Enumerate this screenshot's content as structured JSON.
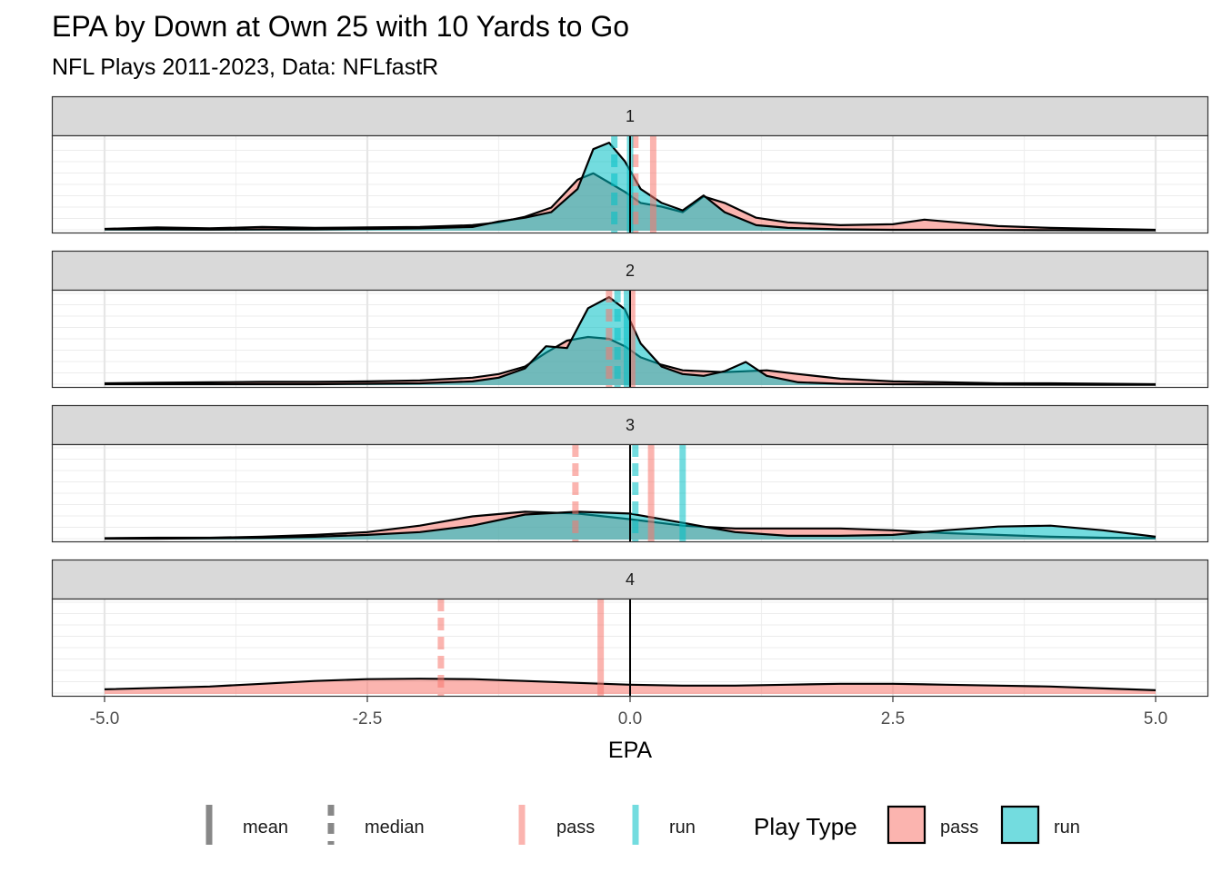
{
  "chart_data": {
    "type": "area",
    "title": "EPA by Down at Own 25 with 10 Yards to Go",
    "subtitle": "NFL Plays 2011-2023, Data: NFLfastR",
    "xlabel": "EPA",
    "ylabel": "",
    "xlim": [
      -5,
      5
    ],
    "xticks": [
      -5.0,
      -2.5,
      0.0,
      2.5,
      5.0
    ],
    "xtick_labels": [
      "-5.0",
      "-2.5",
      "0.0",
      "2.5",
      "5.0"
    ],
    "grid": true,
    "colors": {
      "pass": "#F8766D",
      "run": "#00BFC4"
    },
    "zero_line": 0.0,
    "facets": [
      {
        "label": "1",
        "ymax": 1.0,
        "x": [
          -5.0,
          -4.5,
          -4.0,
          -3.5,
          -3.0,
          -2.5,
          -2.0,
          -1.5,
          -1.25,
          -1.0,
          -0.75,
          -0.5,
          -0.35,
          -0.2,
          -0.05,
          0.1,
          0.3,
          0.5,
          0.7,
          0.9,
          1.2,
          1.5,
          2.0,
          2.5,
          2.8,
          3.1,
          3.5,
          4.0,
          4.5,
          5.0
        ],
        "series": [
          {
            "name": "pass",
            "values": [
              0.02,
              0.035,
              0.025,
              0.04,
              0.03,
              0.035,
              0.04,
              0.06,
              0.09,
              0.15,
              0.25,
              0.55,
              0.62,
              0.52,
              0.42,
              0.3,
              0.26,
              0.2,
              0.37,
              0.3,
              0.14,
              0.09,
              0.06,
              0.07,
              0.12,
              0.09,
              0.05,
              0.03,
              0.02,
              0.01
            ]
          },
          {
            "name": "run",
            "values": [
              0.015,
              0.015,
              0.012,
              0.015,
              0.015,
              0.02,
              0.025,
              0.04,
              0.1,
              0.14,
              0.2,
              0.45,
              0.88,
              0.95,
              0.75,
              0.45,
              0.3,
              0.22,
              0.38,
              0.2,
              0.06,
              0.03,
              0.015,
              0.01,
              0.01,
              0.01,
              0.008,
              0.006,
              0.005,
              0.004
            ]
          }
        ],
        "lines": [
          {
            "series": "pass",
            "stat": "mean",
            "x": 0.22
          },
          {
            "series": "pass",
            "stat": "median",
            "x": 0.05
          },
          {
            "series": "run",
            "stat": "mean",
            "x": 0.0
          },
          {
            "series": "run",
            "stat": "median",
            "x": -0.15
          }
        ]
      },
      {
        "label": "2",
        "ymax": 1.0,
        "x": [
          -5.0,
          -4.5,
          -4.0,
          -3.5,
          -3.0,
          -2.5,
          -2.0,
          -1.5,
          -1.25,
          -1.0,
          -0.8,
          -0.6,
          -0.4,
          -0.2,
          -0.05,
          0.1,
          0.3,
          0.5,
          0.7,
          0.9,
          1.1,
          1.3,
          1.6,
          2.0,
          2.5,
          3.0,
          3.5,
          4.0,
          4.5,
          5.0
        ],
        "series": [
          {
            "name": "pass",
            "values": [
              0.02,
              0.025,
              0.03,
              0.035,
              0.035,
              0.04,
              0.05,
              0.08,
              0.12,
              0.2,
              0.35,
              0.48,
              0.52,
              0.5,
              0.42,
              0.3,
              0.22,
              0.16,
              0.15,
              0.14,
              0.15,
              0.16,
              0.12,
              0.07,
              0.04,
              0.03,
              0.02,
              0.02,
              0.015,
              0.01
            ]
          },
          {
            "name": "run",
            "values": [
              0.01,
              0.01,
              0.01,
              0.01,
              0.01,
              0.015,
              0.02,
              0.04,
              0.08,
              0.18,
              0.42,
              0.4,
              0.83,
              0.95,
              0.82,
              0.45,
              0.2,
              0.12,
              0.1,
              0.15,
              0.25,
              0.1,
              0.03,
              0.015,
              0.01,
              0.008,
              0.006,
              0.005,
              0.004,
              0.003
            ]
          }
        ],
        "lines": [
          {
            "series": "pass",
            "stat": "mean",
            "x": 0.02
          },
          {
            "series": "pass",
            "stat": "median",
            "x": -0.2
          },
          {
            "series": "run",
            "stat": "mean",
            "x": -0.03
          },
          {
            "series": "run",
            "stat": "median",
            "x": -0.12
          }
        ]
      },
      {
        "label": "3",
        "ymax": 1.0,
        "x": [
          -5.0,
          -4.5,
          -4.0,
          -3.5,
          -3.0,
          -2.5,
          -2.0,
          -1.5,
          -1.0,
          -0.5,
          0.0,
          0.5,
          1.0,
          1.5,
          2.0,
          2.5,
          3.0,
          3.5,
          4.0,
          4.5,
          5.0
        ],
        "series": [
          {
            "name": "pass",
            "values": [
              0.015,
              0.02,
              0.02,
              0.03,
              0.05,
              0.08,
              0.15,
              0.25,
              0.3,
              0.28,
              0.22,
              0.15,
              0.12,
              0.12,
              0.12,
              0.1,
              0.07,
              0.05,
              0.03,
              0.02,
              0.015
            ]
          },
          {
            "name": "run",
            "values": [
              0.01,
              0.01,
              0.015,
              0.02,
              0.03,
              0.05,
              0.08,
              0.15,
              0.27,
              0.3,
              0.28,
              0.18,
              0.08,
              0.04,
              0.04,
              0.05,
              0.1,
              0.14,
              0.15,
              0.1,
              0.03
            ]
          }
        ],
        "lines": [
          {
            "series": "pass",
            "stat": "mean",
            "x": 0.2
          },
          {
            "series": "pass",
            "stat": "median",
            "x": -0.52
          },
          {
            "series": "run",
            "stat": "mean",
            "x": 0.5
          },
          {
            "series": "run",
            "stat": "median",
            "x": 0.05
          }
        ]
      },
      {
        "label": "4",
        "ymax": 1.0,
        "x": [
          -5.0,
          -4.0,
          -3.5,
          -3.0,
          -2.5,
          -2.0,
          -1.5,
          -1.0,
          -0.5,
          0.0,
          0.5,
          1.0,
          1.5,
          2.0,
          2.5,
          3.0,
          3.5,
          4.0,
          4.5,
          5.0
        ],
        "series": [
          {
            "name": "pass",
            "values": [
              0.05,
              0.08,
              0.11,
              0.14,
              0.16,
              0.165,
              0.16,
              0.14,
              0.12,
              0.1,
              0.09,
              0.09,
              0.1,
              0.11,
              0.11,
              0.1,
              0.09,
              0.08,
              0.06,
              0.04
            ]
          }
        ],
        "lines": [
          {
            "series": "pass",
            "stat": "mean",
            "x": -0.28
          },
          {
            "series": "pass",
            "stat": "median",
            "x": -1.8
          }
        ]
      }
    ],
    "legend": {
      "placement": "bottom",
      "stat_items": [
        {
          "key": "mean",
          "label": "mean"
        },
        {
          "key": "median",
          "label": "median"
        }
      ],
      "color_items": [
        {
          "key": "pass",
          "label": "pass"
        },
        {
          "key": "run",
          "label": "run"
        }
      ],
      "fill_title": "Play Type",
      "fill_items": [
        {
          "key": "pass",
          "label": "pass"
        },
        {
          "key": "run",
          "label": "run"
        }
      ]
    }
  }
}
